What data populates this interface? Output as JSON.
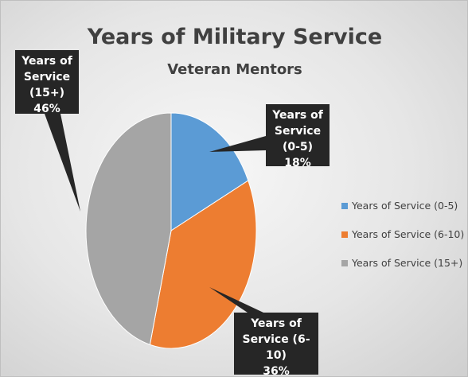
{
  "chart_data": {
    "type": "pie",
    "title": "Years of Military Service",
    "subtitle": "Veteran Mentors",
    "categories": [
      "Years of Service (0-5)",
      "Years of Service (6-10)",
      "Years of Service (15+)"
    ],
    "values": [
      18,
      36,
      46
    ],
    "value_labels": [
      "18%",
      "36%",
      "46%"
    ],
    "colors": [
      "#5b9bd5",
      "#ed7d31",
      "#a5a5a5"
    ],
    "legend": "right"
  }
}
